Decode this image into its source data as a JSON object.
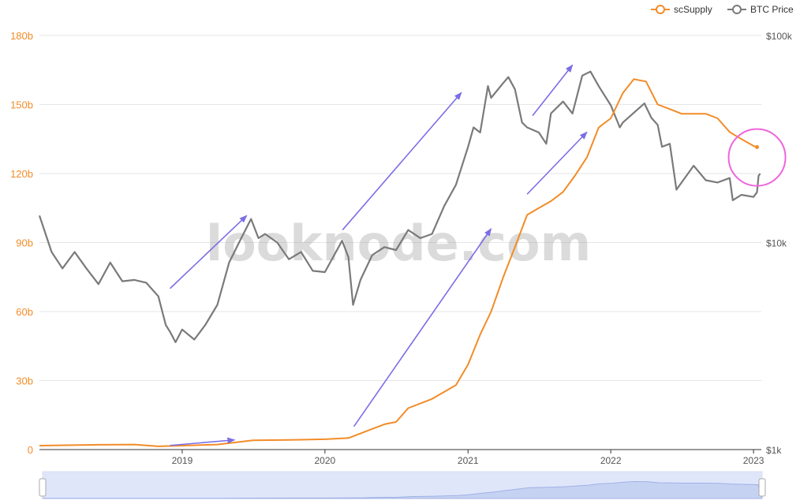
{
  "watermark": "looknode.com",
  "colors": {
    "supply": "#f28c28",
    "price": "#7a7a7a",
    "arrow": "#7b6ee6",
    "circle": "#ee66dd",
    "grid": "#e6e6e6"
  },
  "chart_data": {
    "type": "line",
    "title": "",
    "legend": {
      "position": "top-right",
      "entries": [
        "scSupply",
        "BTC Price"
      ]
    },
    "x_ticks": [
      "2019",
      "2020",
      "2021",
      "2022",
      "2023"
    ],
    "y_left": {
      "ticks": [
        "0",
        "30b",
        "60b",
        "90b",
        "120b",
        "150b",
        "180b"
      ],
      "range": [
        0,
        180
      ],
      "unit": "b"
    },
    "y_right": {
      "ticks": [
        "$1k",
        "$10k",
        "$100k"
      ],
      "scale": "log",
      "range": [
        1000,
        100000
      ]
    },
    "grid": true,
    "series": [
      {
        "name": "scSupply",
        "axis": "left",
        "points": [
          [
            "2018-01-01",
            1.7
          ],
          [
            "2018-06-01",
            2.1
          ],
          [
            "2018-09-01",
            2.2
          ],
          [
            "2018-11-01",
            1.4
          ],
          [
            "2019-01-01",
            1.7
          ],
          [
            "2019-04-01",
            2.2
          ],
          [
            "2019-07-01",
            4.0
          ],
          [
            "2019-10-01",
            4.2
          ],
          [
            "2020-01-01",
            4.5
          ],
          [
            "2020-03-01",
            5.0
          ],
          [
            "2020-04-01",
            7.0
          ],
          [
            "2020-05-01",
            9.0
          ],
          [
            "2020-06-01",
            11.0
          ],
          [
            "2020-07-01",
            12.0
          ],
          [
            "2020-08-01",
            18.0
          ],
          [
            "2020-10-01",
            22.0
          ],
          [
            "2020-12-01",
            28.0
          ],
          [
            "2021-01-01",
            37.0
          ],
          [
            "2021-02-01",
            50.0
          ],
          [
            "2021-03-01",
            60.0
          ],
          [
            "2021-04-01",
            75.0
          ],
          [
            "2021-05-01",
            88.0
          ],
          [
            "2021-06-01",
            102.0
          ],
          [
            "2021-07-01",
            105.0
          ],
          [
            "2021-08-01",
            108.0
          ],
          [
            "2021-09-01",
            112.0
          ],
          [
            "2021-10-01",
            119.0
          ],
          [
            "2021-11-01",
            127.0
          ],
          [
            "2021-12-01",
            140.0
          ],
          [
            "2022-01-01",
            144.0
          ],
          [
            "2022-02-01",
            155.0
          ],
          [
            "2022-03-01",
            161.0
          ],
          [
            "2022-04-01",
            160.0
          ],
          [
            "2022-05-01",
            150.0
          ],
          [
            "2022-06-01",
            148.0
          ],
          [
            "2022-07-01",
            146.0
          ],
          [
            "2022-08-01",
            146.0
          ],
          [
            "2022-09-01",
            146.0
          ],
          [
            "2022-10-01",
            144.0
          ],
          [
            "2022-11-01",
            138.0
          ],
          [
            "2022-12-01",
            135.0
          ],
          [
            "2023-01-01",
            132.0
          ],
          [
            "2023-01-10",
            131.5
          ]
        ]
      },
      {
        "name": "BTC Price",
        "axis": "right",
        "points": [
          [
            "2018-01-01",
            13500
          ],
          [
            "2018-02-01",
            9000
          ],
          [
            "2018-03-01",
            7500
          ],
          [
            "2018-04-01",
            9000
          ],
          [
            "2018-05-01",
            7500
          ],
          [
            "2018-06-01",
            6300
          ],
          [
            "2018-07-01",
            8000
          ],
          [
            "2018-08-01",
            6500
          ],
          [
            "2018-09-01",
            6600
          ],
          [
            "2018-10-01",
            6400
          ],
          [
            "2018-11-01",
            5500
          ],
          [
            "2018-11-20",
            4000
          ],
          [
            "2018-12-01",
            3700
          ],
          [
            "2018-12-15",
            3300
          ],
          [
            "2019-01-01",
            3800
          ],
          [
            "2019-02-01",
            3400
          ],
          [
            "2019-03-01",
            4000
          ],
          [
            "2019-04-01",
            5000
          ],
          [
            "2019-05-01",
            8000
          ],
          [
            "2019-06-01",
            10500
          ],
          [
            "2019-06-26",
            13000
          ],
          [
            "2019-07-15",
            10500
          ],
          [
            "2019-08-01",
            11000
          ],
          [
            "2019-09-01",
            10000
          ],
          [
            "2019-10-01",
            8300
          ],
          [
            "2019-11-01",
            9000
          ],
          [
            "2019-12-01",
            7300
          ],
          [
            "2020-01-01",
            7200
          ],
          [
            "2020-02-14",
            10200
          ],
          [
            "2020-03-01",
            8500
          ],
          [
            "2020-03-13",
            5000
          ],
          [
            "2020-04-01",
            6600
          ],
          [
            "2020-05-01",
            8700
          ],
          [
            "2020-06-01",
            9500
          ],
          [
            "2020-07-01",
            9200
          ],
          [
            "2020-08-01",
            11500
          ],
          [
            "2020-09-01",
            10500
          ],
          [
            "2020-10-01",
            11000
          ],
          [
            "2020-11-01",
            15000
          ],
          [
            "2020-12-01",
            19000
          ],
          [
            "2021-01-01",
            29000
          ],
          [
            "2021-01-15",
            36000
          ],
          [
            "2021-02-01",
            34000
          ],
          [
            "2021-02-21",
            57000
          ],
          [
            "2021-03-01",
            50000
          ],
          [
            "2021-04-01",
            59000
          ],
          [
            "2021-04-14",
            63000
          ],
          [
            "2021-05-01",
            55000
          ],
          [
            "2021-05-19",
            38000
          ],
          [
            "2021-06-01",
            36000
          ],
          [
            "2021-07-01",
            34000
          ],
          [
            "2021-07-20",
            30000
          ],
          [
            "2021-08-01",
            42000
          ],
          [
            "2021-09-01",
            48000
          ],
          [
            "2021-09-25",
            42000
          ],
          [
            "2021-10-20",
            64000
          ],
          [
            "2021-11-10",
            67000
          ],
          [
            "2021-12-01",
            57000
          ],
          [
            "2022-01-01",
            46000
          ],
          [
            "2022-01-24",
            36000
          ],
          [
            "2022-02-01",
            38000
          ],
          [
            "2022-03-28",
            47000
          ],
          [
            "2022-04-15",
            40000
          ],
          [
            "2022-05-01",
            37000
          ],
          [
            "2022-05-12",
            29000
          ],
          [
            "2022-06-01",
            30000
          ],
          [
            "2022-06-18",
            18000
          ],
          [
            "2022-07-01",
            19500
          ],
          [
            "2022-08-01",
            23500
          ],
          [
            "2022-09-01",
            20000
          ],
          [
            "2022-10-01",
            19500
          ],
          [
            "2022-11-01",
            20500
          ],
          [
            "2022-11-09",
            16000
          ],
          [
            "2022-12-01",
            17000
          ],
          [
            "2023-01-01",
            16600
          ],
          [
            "2023-01-10",
            17500
          ],
          [
            "2023-01-14",
            21000
          ],
          [
            "2023-01-18",
            21500
          ]
        ]
      }
    ],
    "annotations": [
      {
        "type": "arrow",
        "from": [
          "2018-12-01",
          1.8
        ],
        "to": [
          "2019-05-15",
          4.2
        ],
        "axis": "left"
      },
      {
        "type": "arrow",
        "from": [
          "2020-03-15",
          10
        ],
        "to": [
          "2021-03-01",
          96
        ],
        "axis": "left"
      },
      {
        "type": "arrow",
        "from": [
          "2021-06-01",
          111
        ],
        "to": [
          "2021-11-01",
          138
        ],
        "axis": "left"
      },
      {
        "type": "arrow",
        "from": [
          "2018-12-01",
          6000
        ],
        "to": [
          "2019-06-15",
          13500
        ],
        "axis": "right"
      },
      {
        "type": "arrow",
        "from": [
          "2020-02-15",
          11500
        ],
        "to": [
          "2020-12-15",
          53000
        ],
        "axis": "right"
      },
      {
        "type": "arrow",
        "from": [
          "2021-06-15",
          41000
        ],
        "to": [
          "2021-09-25",
          72000
        ],
        "axis": "right"
      },
      {
        "type": "circle",
        "center": [
          "2023-01-10",
          127
        ],
        "axis": "left"
      }
    ]
  }
}
